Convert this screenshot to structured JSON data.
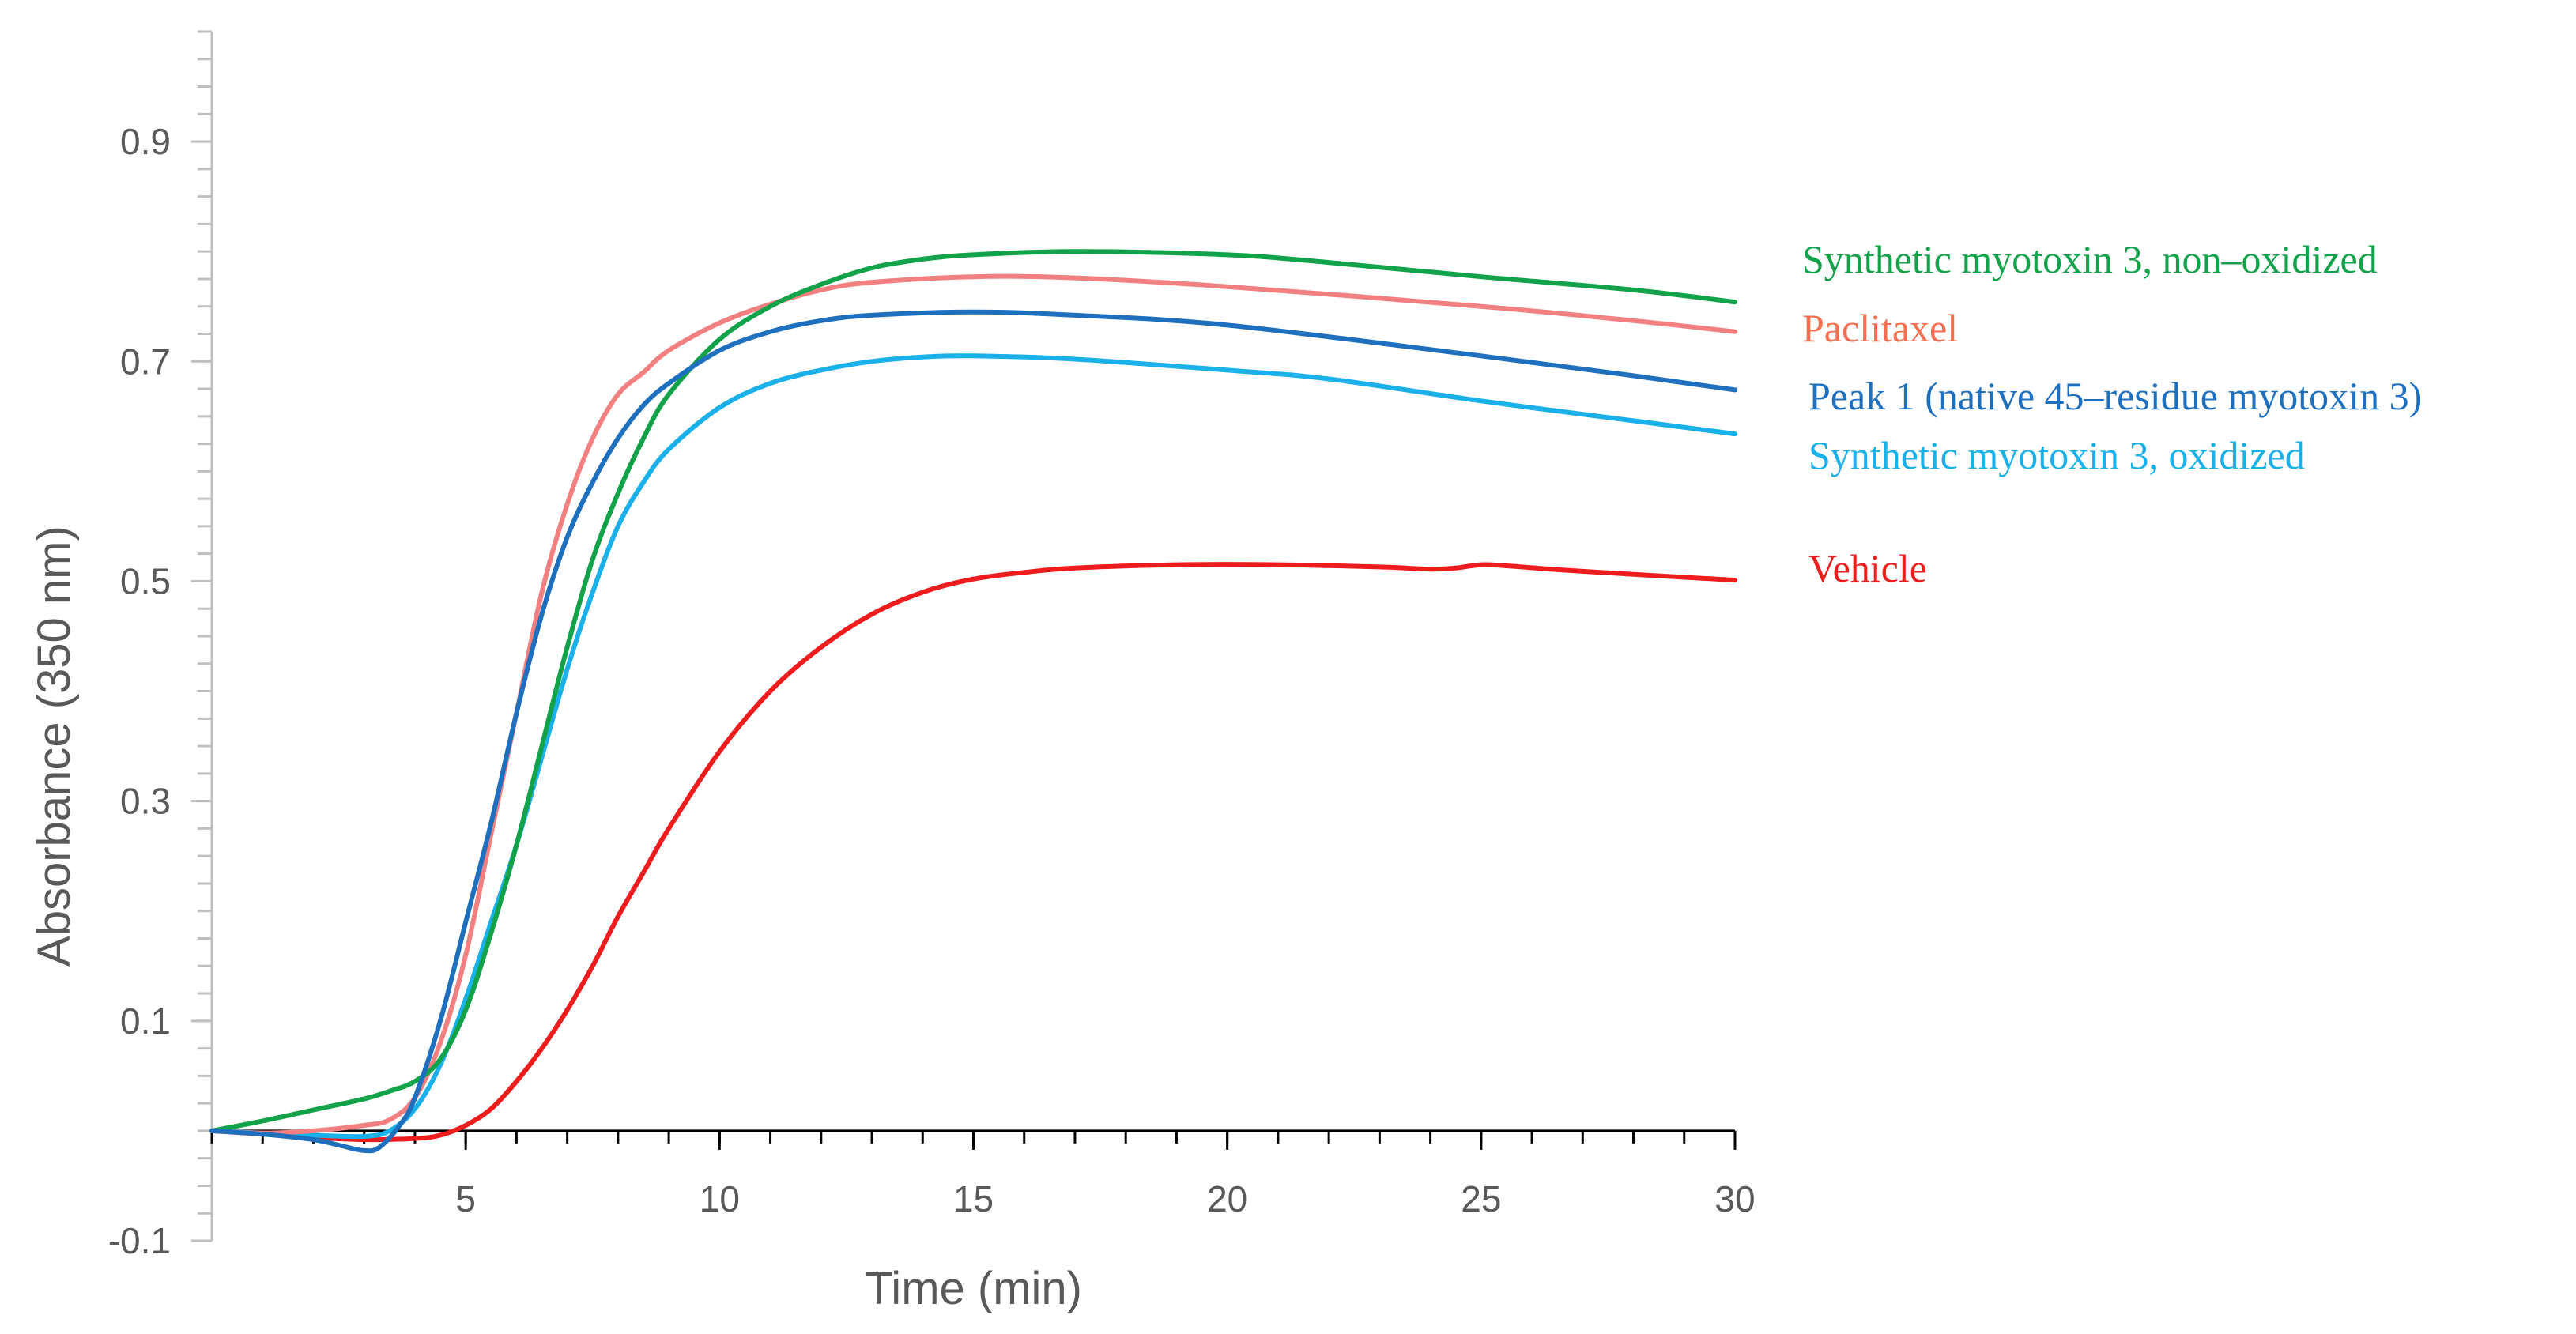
{
  "chart_data": {
    "type": "line",
    "title": "",
    "xlabel": "Time (min)",
    "ylabel": "Absorbance  (350 nm)",
    "xlim": [
      0,
      30
    ],
    "ylim": [
      -0.1,
      1.0
    ],
    "x_ticks": [
      5,
      10,
      15,
      20,
      25,
      30
    ],
    "x_tick_labels": [
      "5",
      "10",
      "15",
      "20",
      "25",
      "30"
    ],
    "y_ticks": [
      -0.1,
      0.1,
      0.3,
      0.5,
      0.7,
      0.9
    ],
    "y_tick_labels": [
      "-0.1",
      "0.1",
      "0.3",
      "0.5",
      "0.7",
      "0.9"
    ],
    "grid": false,
    "legend_placement": "right",
    "series": [
      {
        "name": "Synthetic myotoxin 3, non–oxidized",
        "color": "#12a34a",
        "points": [
          [
            0,
            0
          ],
          [
            1,
            0.009
          ],
          [
            2,
            0.019
          ],
          [
            3,
            0.029
          ],
          [
            3.5,
            0.036
          ],
          [
            4,
            0.045
          ],
          [
            4.5,
            0.065
          ],
          [
            5,
            0.11
          ],
          [
            5.5,
            0.18
          ],
          [
            6,
            0.26
          ],
          [
            6.5,
            0.35
          ],
          [
            7,
            0.44
          ],
          [
            7.5,
            0.52
          ],
          [
            8,
            0.58
          ],
          [
            8.5,
            0.63
          ],
          [
            9,
            0.67
          ],
          [
            10,
            0.72
          ],
          [
            11,
            0.75
          ],
          [
            12,
            0.77
          ],
          [
            13,
            0.785
          ],
          [
            14,
            0.793
          ],
          [
            15,
            0.797
          ],
          [
            17,
            0.8
          ],
          [
            20,
            0.797
          ],
          [
            22,
            0.79
          ],
          [
            25,
            0.777
          ],
          [
            28,
            0.765
          ],
          [
            30,
            0.754
          ]
        ]
      },
      {
        "name": "Paclitaxel",
        "color": "#f28080",
        "points": [
          [
            0,
            0
          ],
          [
            1,
            -0.002
          ],
          [
            2,
            0
          ],
          [
            3,
            0.005
          ],
          [
            3.5,
            0.01
          ],
          [
            4,
            0.03
          ],
          [
            4.5,
            0.08
          ],
          [
            5,
            0.16
          ],
          [
            5.5,
            0.27
          ],
          [
            6,
            0.38
          ],
          [
            6.5,
            0.49
          ],
          [
            7,
            0.57
          ],
          [
            7.5,
            0.63
          ],
          [
            8,
            0.67
          ],
          [
            8.5,
            0.69
          ],
          [
            9,
            0.71
          ],
          [
            10,
            0.735
          ],
          [
            11,
            0.752
          ],
          [
            12,
            0.765
          ],
          [
            13,
            0.772
          ],
          [
            15,
            0.777
          ],
          [
            17,
            0.776
          ],
          [
            20,
            0.768
          ],
          [
            25,
            0.75
          ],
          [
            28,
            0.737
          ],
          [
            30,
            0.727
          ]
        ]
      },
      {
        "name": "Peak 1 (native 45–residue myotoxin 3)",
        "color": "#1f6fbf",
        "points": [
          [
            0,
            0
          ],
          [
            1,
            -0.003
          ],
          [
            2,
            -0.008
          ],
          [
            2.5,
            -0.013
          ],
          [
            3,
            -0.018
          ],
          [
            3.3,
            -0.015
          ],
          [
            3.7,
            0.005
          ],
          [
            4,
            0.03
          ],
          [
            4.5,
            0.1
          ],
          [
            5,
            0.19
          ],
          [
            5.5,
            0.28
          ],
          [
            6,
            0.38
          ],
          [
            6.5,
            0.47
          ],
          [
            7,
            0.54
          ],
          [
            7.5,
            0.59
          ],
          [
            8,
            0.63
          ],
          [
            8.5,
            0.66
          ],
          [
            9,
            0.68
          ],
          [
            10,
            0.71
          ],
          [
            11,
            0.727
          ],
          [
            12,
            0.737
          ],
          [
            13,
            0.742
          ],
          [
            15,
            0.745
          ],
          [
            17,
            0.742
          ],
          [
            20,
            0.733
          ],
          [
            25,
            0.705
          ],
          [
            28,
            0.687
          ],
          [
            30,
            0.674
          ]
        ]
      },
      {
        "name": "Synthetic myotoxin 3, oxidized",
        "color": "#1ab0ea",
        "points": [
          [
            0,
            0
          ],
          [
            1,
            -0.002
          ],
          [
            2,
            -0.004
          ],
          [
            3,
            -0.005
          ],
          [
            3.5,
            0
          ],
          [
            4,
            0.02
          ],
          [
            4.5,
            0.06
          ],
          [
            5,
            0.12
          ],
          [
            5.5,
            0.19
          ],
          [
            6,
            0.26
          ],
          [
            6.5,
            0.34
          ],
          [
            7,
            0.42
          ],
          [
            7.5,
            0.49
          ],
          [
            8,
            0.55
          ],
          [
            8.5,
            0.59
          ],
          [
            9,
            0.62
          ],
          [
            10,
            0.658
          ],
          [
            11,
            0.68
          ],
          [
            12,
            0.692
          ],
          [
            13,
            0.7
          ],
          [
            14,
            0.704
          ],
          [
            15,
            0.705
          ],
          [
            17,
            0.702
          ],
          [
            20,
            0.692
          ],
          [
            22,
            0.684
          ],
          [
            25,
            0.664
          ],
          [
            28,
            0.646
          ],
          [
            30,
            0.634
          ]
        ]
      },
      {
        "name": "Vehicle",
        "color": "#ee1c1c",
        "points": [
          [
            0,
            0
          ],
          [
            1,
            -0.003
          ],
          [
            2,
            -0.006
          ],
          [
            3,
            -0.008
          ],
          [
            4,
            -0.007
          ],
          [
            4.5,
            -0.004
          ],
          [
            5,
            0.005
          ],
          [
            5.5,
            0.02
          ],
          [
            6,
            0.045
          ],
          [
            6.5,
            0.075
          ],
          [
            7,
            0.11
          ],
          [
            7.5,
            0.15
          ],
          [
            8,
            0.195
          ],
          [
            8.5,
            0.235
          ],
          [
            9,
            0.275
          ],
          [
            10,
            0.345
          ],
          [
            11,
            0.4
          ],
          [
            12,
            0.44
          ],
          [
            13,
            0.47
          ],
          [
            14,
            0.49
          ],
          [
            15,
            0.502
          ],
          [
            16,
            0.508
          ],
          [
            17,
            0.512
          ],
          [
            19,
            0.515
          ],
          [
            21,
            0.515
          ],
          [
            23,
            0.513
          ],
          [
            24,
            0.511
          ],
          [
            24.5,
            0.512
          ],
          [
            25,
            0.515
          ],
          [
            25.5,
            0.514
          ],
          [
            27,
            0.509
          ],
          [
            30,
            0.501
          ]
        ]
      }
    ],
    "legend_entries": [
      {
        "series": 0,
        "label": "Synthetic myotoxin 3, non–oxidized",
        "color": "#12a34a"
      },
      {
        "series": 1,
        "label": "Paclitaxel",
        "color": "#f46e50"
      },
      {
        "series": 2,
        "label": "Peak 1 (native 45–residue myotoxin 3)",
        "color": "#1f6fbf"
      },
      {
        "series": 3,
        "label": "Synthetic myotoxin 3, oxidized",
        "color": "#1ab0ea"
      },
      {
        "series": 4,
        "label": "Vehicle",
        "color": "#ee1c1c"
      }
    ]
  }
}
